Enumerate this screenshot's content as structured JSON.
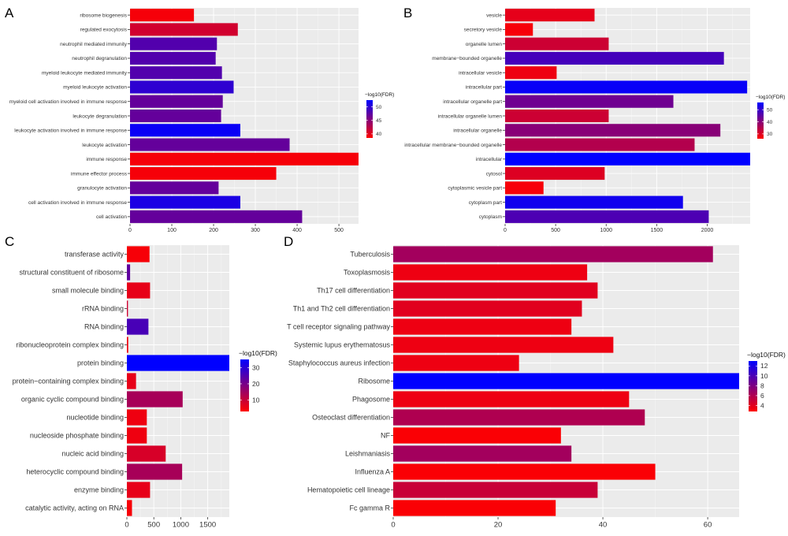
{
  "figure": {
    "background": "#ffffff"
  },
  "chart_data": [
    {
      "panel": "A",
      "type": "bar",
      "orientation": "horizontal",
      "categories": [
        "ribosome biogenesis",
        "regulated exocytosis",
        "neutrophil mediated immunity",
        "neutrophil degranulation",
        "myeloid leukocyte mediated immunity",
        "myeloid leukocyte activation",
        "myeloid cell activation involved in immune response",
        "leukocyte degranulation",
        "leukocyte activation involved in immune response",
        "leukocyte activation",
        "immune response",
        "immune effector process",
        "granulocyte activation",
        "cell activation involved in immune response",
        "cell activation"
      ],
      "values": [
        153,
        258,
        208,
        205,
        220,
        248,
        222,
        218,
        264,
        382,
        547,
        350,
        212,
        264,
        412
      ],
      "color_values": [
        39,
        41,
        48,
        48,
        48,
        50,
        47,
        47,
        52,
        47,
        39,
        39,
        47,
        51,
        47
      ],
      "xlim": [
        0,
        547
      ],
      "xticks": [
        0,
        100,
        200,
        300,
        400,
        500
      ],
      "legend": {
        "title": "−log10(FDR)",
        "ticks": [
          40,
          45,
          50
        ],
        "range": [
          38.5,
          52.5
        ],
        "low_color": "#ff0000",
        "high_color": "#0000ff"
      }
    },
    {
      "panel": "B",
      "type": "bar",
      "orientation": "horizontal",
      "categories": [
        "vesicle",
        "secretory vesicle",
        "organelle lumen",
        "membrane−bounded organelle",
        "intracellular vesicle",
        "intracellular part",
        "intracellular organelle part",
        "intracellular organelle lumen",
        "intracellular organelle",
        "intracellular membrane−bounded organelle",
        "intracellular",
        "cytosol",
        "cytoplasmic vesicle part",
        "cytoplasm part",
        "cytoplasm"
      ],
      "values": [
        885,
        275,
        1025,
        2165,
        510,
        2395,
        1665,
        1025,
        2130,
        1875,
        2425,
        985,
        380,
        1760,
        2015
      ],
      "color_values": [
        29,
        27,
        32,
        48,
        28,
        55,
        43,
        32,
        40,
        35,
        56,
        30,
        27,
        54,
        47
      ],
      "xlim": [
        0,
        2425
      ],
      "xticks": [
        0,
        500,
        1000,
        1500,
        2000
      ],
      "legend": {
        "title": "−log10(FDR)",
        "ticks": [
          30,
          40,
          50
        ],
        "range": [
          26,
          56
        ],
        "low_color": "#ff0000",
        "high_color": "#0000ff"
      }
    },
    {
      "panel": "C",
      "type": "bar",
      "orientation": "horizontal",
      "categories": [
        "transferase activity",
        "structural constituent of ribosome",
        "small molecule binding",
        "rRNA binding",
        "RNA binding",
        "ribonucleoprotein complex binding",
        "protein binding",
        "protein−containing complex binding",
        "organic cyclic compound binding",
        "nucleotide binding",
        "nucleoside phosphate binding",
        "nucleic acid binding",
        "heterocyclic compound binding",
        "enzyme binding",
        "catalytic activity, acting on RNA"
      ],
      "values": [
        420,
        60,
        430,
        20,
        400,
        25,
        1900,
        170,
        1035,
        370,
        370,
        720,
        1025,
        430,
        95
      ],
      "color_values": [
        4,
        23,
        6,
        9,
        26,
        5,
        35,
        6,
        14,
        5,
        5,
        8,
        14,
        6,
        4
      ],
      "xlim": [
        0,
        1900
      ],
      "xticks": [
        0,
        500,
        1000,
        1500
      ],
      "legend": {
        "title": "−log10(FDR)",
        "ticks": [
          10,
          20,
          30
        ],
        "range": [
          3,
          35
        ],
        "low_color": "#ff0000",
        "high_color": "#0000ff"
      }
    },
    {
      "panel": "D",
      "type": "bar",
      "orientation": "horizontal",
      "categories": [
        "Tuberculosis",
        "Toxoplasmosis",
        "Th17 cell differentiation",
        "Th1 and Th2 cell differentiation",
        "T cell receptor signaling pathway",
        "Systemic lupus erythematosus",
        "Staphylococcus aureus infection",
        "Ribosome",
        "Phagosome",
        "Osteoclast differentiation",
        "NF",
        "Leishmaniasis",
        "Influenza A",
        "Hematopoietic cell lineage",
        "Fc gamma R"
      ],
      "values": [
        61,
        37,
        39,
        36,
        34,
        42,
        24,
        66,
        45,
        48,
        32,
        34,
        50,
        39,
        31
      ],
      "color_values": [
        6.5,
        3.5,
        4,
        4,
        3.5,
        3.5,
        3.5,
        13,
        3.5,
        6,
        3,
        6.5,
        3,
        5,
        3
      ],
      "xlim": [
        0,
        66
      ],
      "xticks": [
        0,
        20,
        40,
        60
      ],
      "legend": {
        "title": "−log10(FDR)",
        "ticks": [
          4,
          6,
          8,
          10,
          12
        ],
        "range": [
          2.8,
          13
        ],
        "low_color": "#ff0000",
        "high_color": "#0000ff"
      }
    }
  ]
}
